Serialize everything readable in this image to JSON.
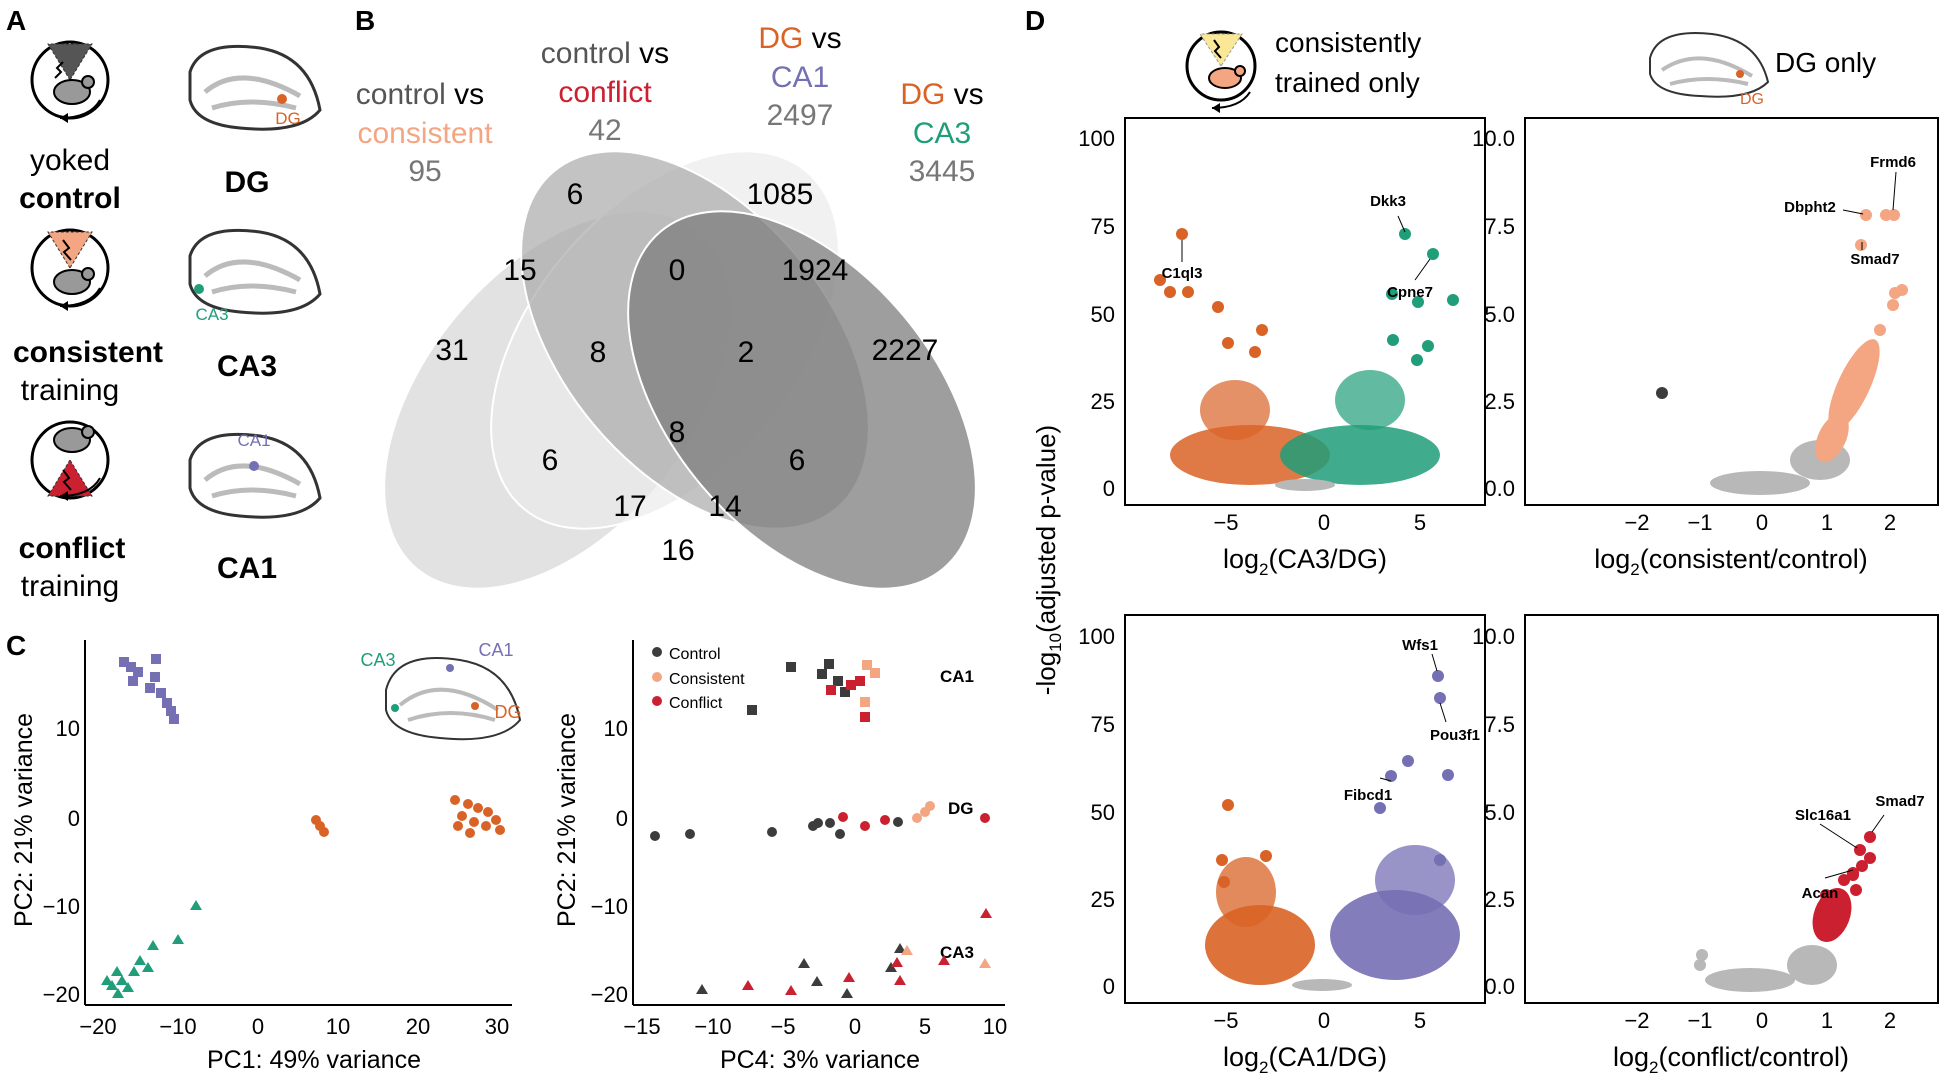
{
  "panels": {
    "A": "A",
    "B": "B",
    "C": "C",
    "D": "D"
  },
  "colors": {
    "dg": "#d96326",
    "ca3": "#1f9e79",
    "ca1": "#7570b4",
    "consistent": "#f4a582",
    "conflict": "#ca2030",
    "control": "#3c3c3c",
    "grey": "#b8b8b8"
  },
  "panelA": {
    "rows": [
      {
        "line1": "yoked",
        "line2": "control",
        "region": "DG",
        "region_label": "DG"
      },
      {
        "line1": "consistent",
        "line2": "training",
        "region": "CA3",
        "region_label": "CA3"
      },
      {
        "line1": "conflict",
        "line2": "training",
        "region": "CA1",
        "region_label": "CA1"
      }
    ]
  },
  "panelB": {
    "sets": [
      {
        "a": "control",
        "b": " vs",
        "c": "consistent",
        "n": "95"
      },
      {
        "a": "control",
        "b": " vs",
        "c": "conflict",
        "n": "42"
      },
      {
        "a": "DG",
        "b": " vs",
        "c": "CA1",
        "n": "2497"
      },
      {
        "a": "DG",
        "b": " vs",
        "c": "CA3",
        "n": "3445"
      }
    ],
    "regions": [
      "6",
      "1085",
      "15",
      "0",
      "1924",
      "31",
      "8",
      "2",
      "2227",
      "8",
      "6",
      "6",
      "17",
      "14",
      "16"
    ]
  },
  "panelC": {
    "left": {
      "xlabel": "PC1: 49% variance",
      "ylabel": "PC2: 21% variance",
      "xticks": [
        "−20",
        "−10",
        "0",
        "10",
        "20",
        "30"
      ],
      "yticks": [
        "10",
        "0",
        "−10",
        "−20"
      ],
      "inset_labels": {
        "ca3": "CA3",
        "ca1": "CA1",
        "dg": "DG"
      }
    },
    "right": {
      "xlabel": "PC4: 3% variance",
      "ylabel": "PC2: 21% variance",
      "xticks": [
        "−15",
        "−10",
        "−5",
        "0",
        "5",
        "10"
      ],
      "yticks": [
        "10",
        "0",
        "−10",
        "−20"
      ],
      "legend": [
        "Control",
        "Consistent",
        "Conflict"
      ],
      "region_labels": [
        "CA1",
        "DG",
        "CA3"
      ]
    }
  },
  "panelD": {
    "header_left": [
      "consistently",
      "trained only"
    ],
    "header_right": "DG only",
    "header_right_dg": "DG",
    "ylabel": "-log10(adjusted p-value)",
    "plots": [
      {
        "xlabel_pre": "log",
        "xlabel_sub": "2",
        "xlabel_post": "(CA3/DG)",
        "xticks": [
          "−5",
          "0",
          "5"
        ],
        "yticks": [
          "100",
          "75",
          "50",
          "25",
          "0"
        ],
        "genes": [
          "Dkk3",
          "C1ql3",
          "Cpne7"
        ]
      },
      {
        "xlabel_pre": "log",
        "xlabel_sub": "2",
        "xlabel_post": "(consistent/control)",
        "xticks": [
          "−2",
          "−1",
          "0",
          "1",
          "2"
        ],
        "yticks": [
          "10.0",
          "7.5",
          "5.0",
          "2.5",
          "0.0"
        ],
        "genes": [
          "Frmd6",
          "Dbpht2",
          "Smad7"
        ]
      },
      {
        "xlabel_pre": "log",
        "xlabel_sub": "2",
        "xlabel_post": "(CA1/DG)",
        "xticks": [
          "−5",
          "0",
          "5"
        ],
        "yticks": [
          "100",
          "75",
          "50",
          "25",
          "0"
        ],
        "genes": [
          "Wfs1",
          "Pou3f1",
          "Fibcd1"
        ]
      },
      {
        "xlabel_pre": "log",
        "xlabel_sub": "2",
        "xlabel_post": "(conflict/control)",
        "xticks": [
          "−2",
          "−1",
          "0",
          "1",
          "2"
        ],
        "yticks": [
          "10.0",
          "7.5",
          "5.0",
          "2.5",
          "0.0"
        ],
        "genes": [
          "Slc16a1",
          "Smad7",
          "Acan"
        ]
      }
    ]
  }
}
